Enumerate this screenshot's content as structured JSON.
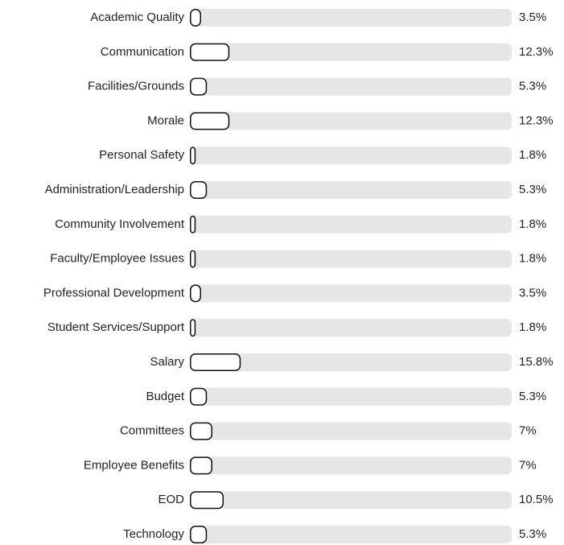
{
  "chart_data": {
    "type": "bar",
    "orientation": "horizontal",
    "categories": [
      "Academic Quality",
      "Communication",
      "Facilities/Grounds",
      "Morale",
      "Personal Safety",
      "Administration/Leadership",
      "Community Involvement",
      "Faculty/Employee Issues",
      "Professional Development",
      "Student Services/Support",
      "Salary",
      "Budget",
      "Committees",
      "Employee Benefits",
      "EOD",
      "Technology"
    ],
    "values": [
      3.5,
      12.3,
      5.3,
      12.3,
      1.8,
      5.3,
      1.8,
      1.8,
      3.5,
      1.8,
      15.8,
      5.3,
      7,
      7,
      10.5,
      5.3
    ],
    "value_labels": [
      "3.5%",
      "12.3%",
      "5.3%",
      "12.3%",
      "1.8%",
      "5.3%",
      "1.8%",
      "1.8%",
      "3.5%",
      "1.8%",
      "15.8%",
      "5.3%",
      "7%",
      "7%",
      "10.5%",
      "5.3%"
    ],
    "xlim": [
      0,
      100
    ],
    "color": "#ffffff"
  }
}
